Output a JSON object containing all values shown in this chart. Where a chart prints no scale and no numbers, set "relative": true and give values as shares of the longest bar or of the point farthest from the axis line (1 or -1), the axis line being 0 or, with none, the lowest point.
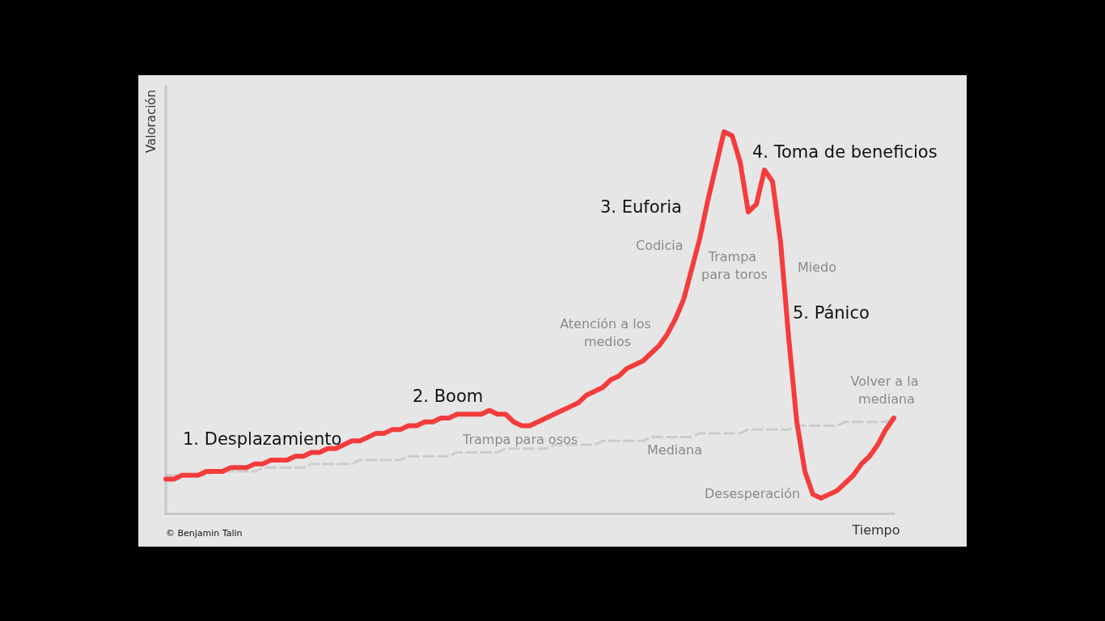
{
  "chart_data": {
    "type": "line",
    "relative": true,
    "xlabel": "Tiempo",
    "ylabel": "Valoración",
    "marker": "none",
    "categories": [
      null,
      null,
      null,
      null,
      null,
      null,
      null,
      null,
      null,
      null,
      null,
      null,
      null,
      null,
      null,
      null,
      null,
      null,
      null,
      null,
      null,
      null,
      null,
      null,
      null,
      null,
      null,
      null,
      null,
      null,
      null,
      null,
      null,
      null,
      null,
      null,
      null,
      null,
      null,
      null,
      null,
      null,
      null,
      null,
      null,
      null,
      null,
      null,
      null,
      null,
      null,
      null,
      null,
      null,
      null,
      null,
      null,
      null,
      null,
      null,
      null,
      null,
      null,
      null,
      null,
      null,
      null,
      null,
      null,
      null,
      null,
      null,
      null,
      null,
      null,
      null,
      null,
      null,
      null,
      null,
      null,
      null,
      null,
      null,
      null,
      null,
      null,
      null,
      null,
      null,
      null
    ],
    "series": [
      {
        "color": "#f43c3c",
        "line_style": "solid",
        "values": [
          0.09,
          0.09,
          0.1,
          0.1,
          0.1,
          0.11,
          0.11,
          0.11,
          0.12,
          0.12,
          0.12,
          0.13,
          0.13,
          0.14,
          0.14,
          0.14,
          0.15,
          0.15,
          0.16,
          0.16,
          0.17,
          0.17,
          0.18,
          0.19,
          0.19,
          0.2,
          0.21,
          0.21,
          0.22,
          0.22,
          0.23,
          0.23,
          0.24,
          0.24,
          0.25,
          0.25,
          0.26,
          0.26,
          0.26,
          0.26,
          0.27,
          0.26,
          0.26,
          0.24,
          0.23,
          0.23,
          0.24,
          0.25,
          0.26,
          0.27,
          0.28,
          0.29,
          0.31,
          0.32,
          0.33,
          0.35,
          0.36,
          0.38,
          0.39,
          0.4,
          0.42,
          0.44,
          0.47,
          0.51,
          0.56,
          0.64,
          0.72,
          0.82,
          0.91,
          1.0,
          0.99,
          0.92,
          0.79,
          0.81,
          0.9,
          0.87,
          0.71,
          0.46,
          0.24,
          0.11,
          0.05,
          0.04,
          0.05,
          0.06,
          0.08,
          0.1,
          0.13,
          0.15,
          0.18,
          0.22,
          0.25
        ]
      },
      {
        "color": "#cccccc",
        "line_style": "dashed",
        "values": [
          0.1,
          0.1,
          0.1,
          0.1,
          0.1,
          0.1,
          0.11,
          0.11,
          0.11,
          0.11,
          0.11,
          0.11,
          0.12,
          0.12,
          0.12,
          0.12,
          0.12,
          0.12,
          0.13,
          0.13,
          0.13,
          0.13,
          0.13,
          0.13,
          0.14,
          0.14,
          0.14,
          0.14,
          0.14,
          0.14,
          0.15,
          0.15,
          0.15,
          0.15,
          0.15,
          0.15,
          0.16,
          0.16,
          0.16,
          0.16,
          0.16,
          0.16,
          0.17,
          0.17,
          0.17,
          0.17,
          0.17,
          0.17,
          0.18,
          0.18,
          0.18,
          0.18,
          0.18,
          0.18,
          0.19,
          0.19,
          0.19,
          0.19,
          0.19,
          0.19,
          0.2,
          0.2,
          0.2,
          0.2,
          0.2,
          0.2,
          0.21,
          0.21,
          0.21,
          0.21,
          0.21,
          0.21,
          0.22,
          0.22,
          0.22,
          0.22,
          0.22,
          0.22,
          0.23,
          0.23,
          0.23,
          0.23,
          0.23,
          0.23,
          0.24,
          0.24,
          0.24,
          0.24,
          0.24,
          0.24,
          0.25
        ]
      }
    ],
    "annotations": [
      "1. Desplazamiento",
      "2. Boom",
      "3. Euforia",
      "4. Toma de beneficios",
      "5. Pánico",
      "Trampa para osos",
      "Atención a los medios",
      "Codicia",
      "Trampa para toros",
      "Miedo",
      "Volver a la mediana",
      "Mediana",
      "Desesperación",
      "© Benjamin Talin"
    ]
  }
}
